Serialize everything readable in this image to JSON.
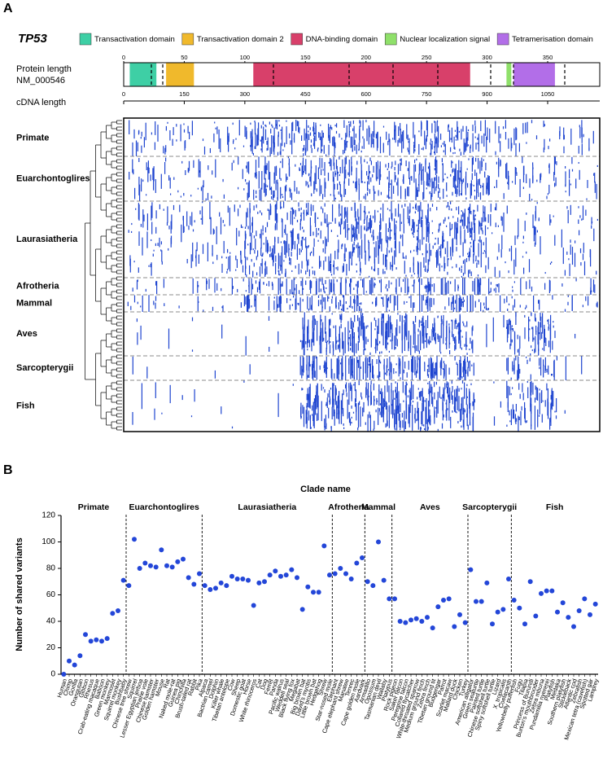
{
  "panel_a": {
    "label": "A",
    "gene": "TP53",
    "domains": [
      {
        "name": "Transactivation domain",
        "color": "#3ecfa5",
        "start": 5,
        "end": 27
      },
      {
        "name": "Transactivation domain 2",
        "color": "#f0b92c",
        "start": 35,
        "end": 58
      },
      {
        "name": "DNA-binding domain",
        "color": "#d8406a",
        "start": 107,
        "end": 286
      },
      {
        "name": "Nuclear localization signal",
        "color": "#8fe06a",
        "start": 316,
        "end": 320
      },
      {
        "name": "Tetramerisation domain",
        "color": "#b26ee8",
        "start": 322,
        "end": 356
      }
    ],
    "protein_axis": {
      "label": "Protein length",
      "sublabel": "NM_000546",
      "lim": [
        0,
        393
      ],
      "ticks": [
        0,
        50,
        100,
        150,
        200,
        250,
        300,
        350
      ]
    },
    "cdna_axis": {
      "label": "cDNA length",
      "lim": [
        0,
        1179
      ],
      "ticks": [
        0,
        150,
        300,
        450,
        600,
        750,
        900,
        1050
      ]
    },
    "clades": [
      "Primate",
      "Euarchontoglires",
      "Laurasiatheria",
      "Afrotheria",
      "Mammal",
      "Aves",
      "Sarcopterygii",
      "Fish"
    ]
  },
  "chart_data": {
    "type": "scatter",
    "panel_label": "B",
    "title": "Clade name",
    "y_label": "Number of shared variants",
    "ylim": [
      0,
      120
    ],
    "yticks": [
      0,
      20,
      40,
      60,
      80,
      100,
      120
    ],
    "color": "#2346d8",
    "series": [
      {
        "name": "Primate",
        "categories": [
          "Human",
          "Chimp",
          "Gorilla",
          "Orangutan",
          "Gibbon",
          "Rhesus",
          "Crab-eating macaque",
          "Baboon",
          "Green monkey",
          "Marmoset",
          "Squirrel monkey",
          "Bushbaby"
        ],
        "values": [
          0,
          10,
          7,
          14,
          30,
          25,
          26,
          25,
          27,
          46,
          48,
          71
        ]
      },
      {
        "name": "Euarchontoglires",
        "categories": [
          "Chinese tree shrew",
          "Squirrel",
          "Lesser Egyptian jerboa",
          "Prairie vole",
          "Chinese hamster",
          "Golden hamster",
          "Mouse",
          "Rat",
          "Naked mole-rat",
          "Guinea pig",
          "Chinchilla",
          "Brush-tailed rat",
          "Rabbit",
          "Pika"
        ],
        "values": [
          67,
          102,
          80,
          84,
          82,
          81,
          94,
          82,
          81,
          85,
          87,
          73,
          68,
          76
        ]
      },
      {
        "name": "Laurasiatheria",
        "categories": [
          "Alpaca",
          "Bactrian camel",
          "Dolphin",
          "Killer whale",
          "Tibetan antelope",
          "Cow",
          "Sheep",
          "Domestic goat",
          "Horse",
          "White rhinoceros",
          "Cat",
          "Dog",
          "Ferret",
          "Panda",
          "Pacific walrus",
          "Weddell seal",
          "Black flying fox",
          "Megabat",
          "Big brown bat",
          "David's myotis",
          "Little brown bat",
          "Hedgehog",
          "Shrew",
          "Star-nosed mole"
        ],
        "values": [
          67,
          64,
          65,
          69,
          67,
          74,
          72,
          72,
          71,
          52,
          69,
          70,
          75,
          78,
          74,
          75,
          79,
          73,
          49,
          66,
          62,
          62,
          97,
          75
        ]
      },
      {
        "name": "Afrotheria",
        "categories": [
          "Elephant",
          "Cape elephant shrew",
          "Manatee",
          "Tenrec",
          "Cape golden mole",
          "Aardvark"
        ],
        "values": [
          76,
          80,
          76,
          72,
          84,
          88
        ]
      },
      {
        "name": "Mammal",
        "categories": [
          "Armadillo",
          "Opossum",
          "Tasmanian devil",
          "Wallaby",
          "Platypus"
        ],
        "values": [
          70,
          67,
          100,
          71,
          57
        ]
      },
      {
        "name": "Aves",
        "categories": [
          "Rock pigeon",
          "Saker falcon",
          "Peregrine falcon",
          "Collared flycatcher",
          "White-throated sparrow",
          "Medium ground finch",
          "Zebra finch",
          "Tibetan ground tit",
          "Budgerigar",
          "Parrot",
          "Scarlet macaw",
          "Mallard duck",
          "Chicken",
          "Turkey"
        ],
        "values": [
          57,
          40,
          39,
          41,
          42,
          40,
          43,
          35,
          51,
          56,
          57,
          36,
          45,
          39
        ]
      },
      {
        "name": "Sarcopterygii",
        "categories": [
          "American alligator",
          "Green seaturtle",
          "Painted turtle",
          "Chinese softshell turtle",
          "Spiny softshell turtle",
          "Lizard",
          "X_tropicalis",
          "Coelacanth"
        ],
        "values": [
          79,
          55,
          55,
          69,
          38,
          47,
          49,
          72
        ]
      },
      {
        "name": "Fish",
        "categories": [
          "Yellowbelly pufferfish",
          "Fugu",
          "Tilapia",
          "Princess of Burundi",
          "Burton's mouthbrooder",
          "Zebra mbuna",
          "Pundamilia nyererei",
          "Platyfish",
          "Medaka",
          "Southern platyfish",
          "Stickleback",
          "Atlantic cod",
          "Zebrafish",
          "Mexican tetra (cavefish)",
          "Spotted gar",
          "Lamprey"
        ],
        "values": [
          56,
          50,
          38,
          70,
          44,
          61,
          63,
          63,
          47,
          54,
          43,
          36,
          48,
          57,
          45,
          53
        ]
      }
    ]
  }
}
